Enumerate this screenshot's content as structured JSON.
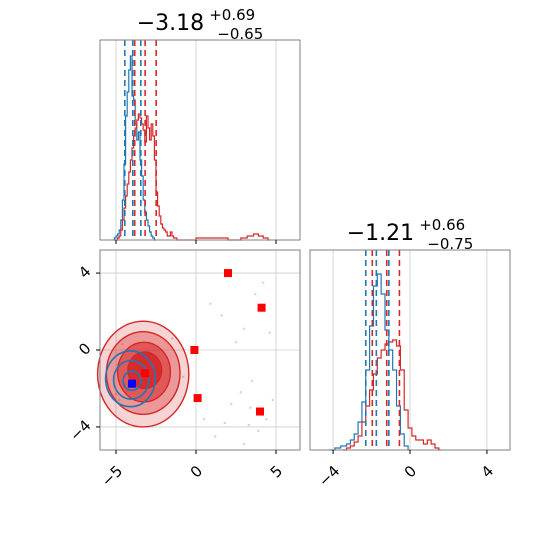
{
  "chart_data": {
    "type": "corner",
    "parameters": [
      "p1",
      "p2"
    ],
    "colors": {
      "red": "#d62728",
      "blue": "#1f77b4",
      "marker_red": "#ff0000",
      "marker_blue": "#0000ff"
    },
    "panels": [
      {
        "panel": "marginal-p1",
        "title_main": "−3.18",
        "title_sup": "+0.69",
        "title_sub": "−0.65",
        "xlim": [
          -6,
          6.5
        ],
        "grid": true,
        "ticks": [
          -5,
          0,
          5
        ],
        "red_quantiles": [
          -3.83,
          -3.18,
          -2.49
        ],
        "blue_quantiles": [
          -4.45,
          -3.95,
          -3.45
        ],
        "red_hist": [
          [
            -5.0,
            0.0
          ],
          [
            -4.9,
            0.01
          ],
          [
            -4.8,
            0.02
          ],
          [
            -4.7,
            0.05
          ],
          [
            -4.6,
            0.1
          ],
          [
            -4.5,
            0.16
          ],
          [
            -4.4,
            0.22
          ],
          [
            -4.3,
            0.28
          ],
          [
            -4.2,
            0.34
          ],
          [
            -4.1,
            0.4
          ],
          [
            -4.0,
            0.46
          ],
          [
            -3.9,
            0.52
          ],
          [
            -3.8,
            0.56
          ],
          [
            -3.7,
            0.6
          ],
          [
            -3.6,
            0.63
          ],
          [
            -3.5,
            0.61
          ],
          [
            -3.4,
            0.58
          ],
          [
            -3.3,
            0.55
          ],
          [
            -3.2,
            0.49
          ],
          [
            -3.1,
            0.62
          ],
          [
            -3.0,
            0.56
          ],
          [
            -2.9,
            0.5
          ],
          [
            -2.8,
            0.58
          ],
          [
            -2.7,
            0.52
          ],
          [
            -2.6,
            0.4
          ],
          [
            -2.5,
            0.24
          ],
          [
            -2.4,
            0.17
          ],
          [
            -2.3,
            0.12
          ],
          [
            -2.2,
            0.08
          ],
          [
            -2.1,
            0.06
          ],
          [
            -2.0,
            0.05
          ],
          [
            -1.9,
            0.04
          ],
          [
            -1.8,
            0.02
          ],
          [
            -1.7,
            0.02
          ],
          [
            -1.6,
            0.04
          ],
          [
            -1.5,
            0.02
          ],
          [
            -1.4,
            0.01
          ],
          [
            -1.3,
            0.01
          ],
          [
            -1.2,
            0.0
          ],
          [
            -0.2,
            0.0
          ],
          [
            0.0,
            0.01
          ],
          [
            0.5,
            0.01
          ],
          [
            1.0,
            0.01
          ],
          [
            1.5,
            0.01
          ],
          [
            2.0,
            0.0
          ],
          [
            2.8,
            0.01
          ],
          [
            3.2,
            0.02
          ],
          [
            3.6,
            0.03
          ],
          [
            3.9,
            0.02
          ],
          [
            4.2,
            0.01
          ],
          [
            4.5,
            0.0
          ]
        ],
        "blue_hist": [
          [
            -5.2,
            0.0
          ],
          [
            -5.1,
            0.01
          ],
          [
            -5.0,
            0.02
          ],
          [
            -4.9,
            0.03
          ],
          [
            -4.8,
            0.05
          ],
          [
            -4.7,
            0.1
          ],
          [
            -4.6,
            0.2
          ],
          [
            -4.5,
            0.38
          ],
          [
            -4.4,
            0.62
          ],
          [
            -4.3,
            0.74
          ],
          [
            -4.2,
            0.85
          ],
          [
            -4.1,
            0.92
          ],
          [
            -4.0,
            0.72
          ],
          [
            -3.9,
            0.7
          ],
          [
            -3.8,
            0.58
          ],
          [
            -3.7,
            0.5
          ],
          [
            -3.6,
            0.54
          ],
          [
            -3.5,
            0.4
          ],
          [
            -3.4,
            0.32
          ],
          [
            -3.3,
            0.2
          ],
          [
            -3.2,
            0.14
          ],
          [
            -3.1,
            0.1
          ],
          [
            -3.0,
            0.07
          ],
          [
            -2.9,
            0.04
          ],
          [
            -2.8,
            0.02
          ],
          [
            -2.7,
            0.01
          ],
          [
            -2.6,
            0.0
          ]
        ]
      },
      {
        "panel": "joint-p1-p2",
        "xlim": [
          -6,
          6.5
        ],
        "ylim": [
          -5.2,
          5.2
        ],
        "grid": true,
        "xticks": [
          -5,
          0,
          5
        ],
        "yticks": [
          4,
          0,
          -4
        ],
        "red_points": [
          [
            -3.18,
            -1.21
          ],
          [
            2.0,
            4.0
          ],
          [
            4.1,
            2.2
          ],
          [
            -0.1,
            0.0
          ],
          [
            0.1,
            -2.5
          ],
          [
            4.0,
            -3.2
          ]
        ],
        "blue_points": [
          [
            -4.0,
            -1.75
          ]
        ],
        "red_contours": [
          {
            "cx": -3.2,
            "cy": -1.05,
            "rx": 1.05,
            "ry": 0.95,
            "opacity": 0.9
          },
          {
            "cx": -3.25,
            "cy": -1.15,
            "rx": 1.65,
            "ry": 1.55,
            "opacity": 0.55
          },
          {
            "cx": -3.3,
            "cy": -1.2,
            "rx": 2.3,
            "ry": 2.15,
            "opacity": 0.35
          },
          {
            "cx": -3.3,
            "cy": -1.25,
            "rx": 2.85,
            "ry": 2.75,
            "opacity": 0.2
          }
        ],
        "blue_contours": [
          {
            "cx": -4.0,
            "cy": -1.6,
            "rx": 0.55,
            "ry": 0.5
          },
          {
            "cx": -4.05,
            "cy": -1.55,
            "rx": 1.1,
            "ry": 1.0
          },
          {
            "cx": -4.1,
            "cy": -1.5,
            "rx": 1.55,
            "ry": 1.45
          }
        ],
        "scatter": [
          [
            -5.1,
            -1.9
          ],
          [
            -5.0,
            -2.3
          ],
          [
            -4.9,
            -0.8
          ],
          [
            -4.8,
            -2.6
          ],
          [
            -4.6,
            0.3
          ],
          [
            -4.5,
            -2.9
          ],
          [
            -4.3,
            -2.1
          ],
          [
            -2.1,
            -3.0
          ],
          [
            -1.8,
            -0.4
          ],
          [
            -1.5,
            0.6
          ],
          [
            -0.8,
            -1.4
          ],
          [
            0.5,
            -3.6
          ],
          [
            1.2,
            -4.5
          ],
          [
            1.8,
            -3.8
          ],
          [
            2.5,
            0.4
          ],
          [
            2.8,
            -2.2
          ],
          [
            3.0,
            1.1
          ],
          [
            3.3,
            -3.9
          ],
          [
            3.5,
            -1.6
          ],
          [
            3.7,
            2.9
          ],
          [
            3.9,
            -4.2
          ],
          [
            4.2,
            3.5
          ],
          [
            4.4,
            -3.6
          ],
          [
            4.6,
            0.9
          ],
          [
            3.0,
            -4.9
          ],
          [
            2.2,
            -2.8
          ],
          [
            1.6,
            1.8
          ],
          [
            0.9,
            2.4
          ],
          [
            4.8,
            -2.6
          ],
          [
            3.4,
            -3.0
          ]
        ]
      },
      {
        "panel": "marginal-p2",
        "title_main": "−1.21",
        "title_sup": "+0.66",
        "title_sub": "−0.75",
        "xlim": [
          -5.2,
          5.2
        ],
        "grid": true,
        "ticks": [
          -4,
          0,
          4
        ],
        "red_quantiles": [
          -1.96,
          -1.21,
          -0.55
        ],
        "blue_quantiles": [
          -2.3,
          -1.75,
          -1.1
        ],
        "red_hist": [
          [
            -3.5,
            0.0
          ],
          [
            -3.3,
            0.01
          ],
          [
            -3.1,
            0.02
          ],
          [
            -2.9,
            0.04
          ],
          [
            -2.7,
            0.07
          ],
          [
            -2.5,
            0.14
          ],
          [
            -2.3,
            0.22
          ],
          [
            -2.1,
            0.3
          ],
          [
            -1.9,
            0.38
          ],
          [
            -1.7,
            0.46
          ],
          [
            -1.5,
            0.5
          ],
          [
            -1.3,
            0.53
          ],
          [
            -1.1,
            0.54
          ],
          [
            -0.9,
            0.55
          ],
          [
            -0.7,
            0.52
          ],
          [
            -0.5,
            0.4
          ],
          [
            -0.3,
            0.2
          ],
          [
            -0.1,
            0.11
          ],
          [
            0.1,
            0.07
          ],
          [
            0.3,
            0.05
          ],
          [
            0.5,
            0.05
          ],
          [
            0.7,
            0.03
          ],
          [
            0.9,
            0.05
          ],
          [
            1.1,
            0.03
          ],
          [
            1.3,
            0.01
          ],
          [
            1.5,
            0.0
          ]
        ],
        "blue_hist": [
          [
            -4.2,
            0.0
          ],
          [
            -3.9,
            0.01
          ],
          [
            -3.6,
            0.02
          ],
          [
            -3.3,
            0.03
          ],
          [
            -3.1,
            0.05
          ],
          [
            -2.9,
            0.08
          ],
          [
            -2.7,
            0.14
          ],
          [
            -2.5,
            0.24
          ],
          [
            -2.3,
            0.4
          ],
          [
            -2.1,
            0.62
          ],
          [
            -1.9,
            0.82
          ],
          [
            -1.7,
            0.88
          ],
          [
            -1.5,
            0.78
          ],
          [
            -1.3,
            0.6
          ],
          [
            -1.1,
            0.5
          ],
          [
            -0.9,
            0.4
          ],
          [
            -0.7,
            0.22
          ],
          [
            -0.5,
            0.08
          ],
          [
            -0.3,
            0.02
          ],
          [
            -0.1,
            0.0
          ]
        ]
      }
    ]
  }
}
